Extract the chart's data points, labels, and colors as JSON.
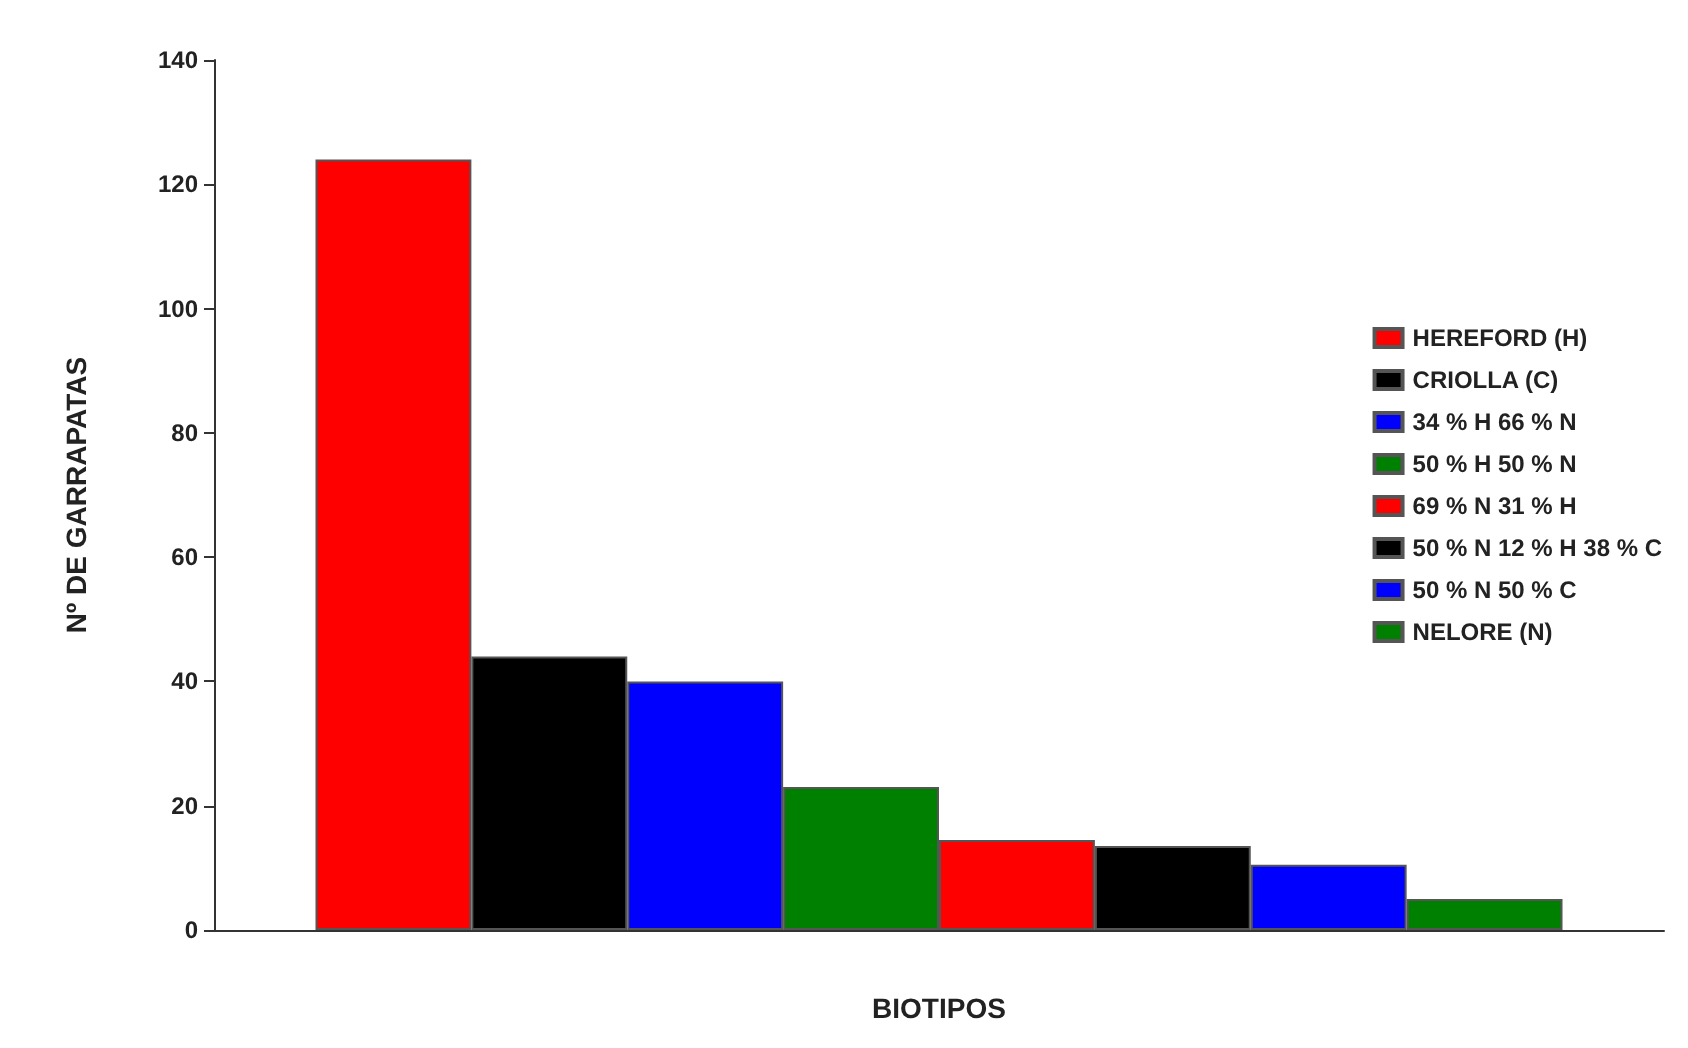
{
  "chart_data": {
    "type": "bar",
    "xlabel": "BIOTIPOS",
    "ylabel": "Nº DE GARRAPATAS",
    "categories": [
      null
    ],
    "series": [
      {
        "name": "HEREFORD (H)",
        "color": "#ff0000",
        "values": [
          124
        ]
      },
      {
        "name": "CRIOLLA (C)",
        "color": "#000000",
        "values": [
          44
        ]
      },
      {
        "name": "34 % H 66 % N",
        "color": "#0000ff",
        "values": [
          40
        ]
      },
      {
        "name": "50 % H 50 % N",
        "color": "#008000",
        "values": [
          23
        ]
      },
      {
        "name": "69 % N 31 % H",
        "color": "#ff0000",
        "values": [
          14.5
        ]
      },
      {
        "name": "50 % N 12 % H 38 % C",
        "color": "#000000",
        "values": [
          13.5
        ]
      },
      {
        "name": "50 % N 50 % C",
        "color": "#0000ff",
        "values": [
          10.5
        ]
      },
      {
        "name": "NELORE (N)",
        "color": "#008000",
        "values": [
          5
        ]
      }
    ],
    "ylim": [
      0,
      140
    ],
    "yticks": [
      0,
      20,
      40,
      60,
      80,
      100,
      120,
      140
    ],
    "grid": false,
    "legend": "right"
  }
}
